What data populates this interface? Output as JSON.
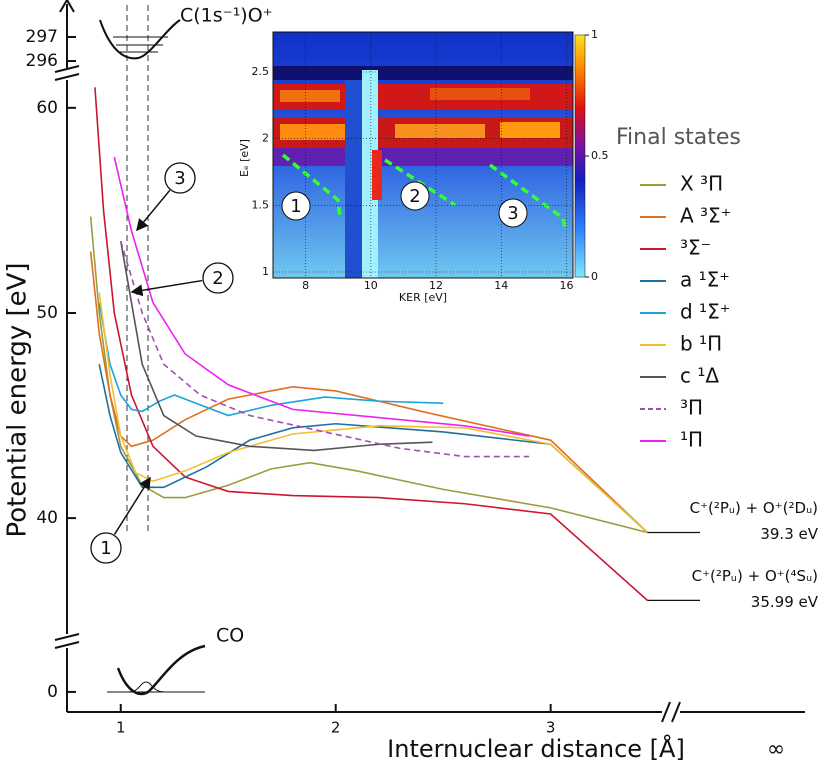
{
  "chart_data": [
    {
      "type": "line",
      "xlabel": "Internuclear distance [Å]",
      "ylabel": "Potential energy [eV]",
      "xlim": [
        0.75,
        4.16
      ],
      "xticks": [
        1,
        2,
        3
      ],
      "x_infinity_label": "∞",
      "ylim": [
        34,
        61.6
      ],
      "yticks": [
        40,
        50,
        60
      ],
      "upper_ylim": [
        295.42,
        297.79
      ],
      "upper_yticks": [
        296,
        297
      ],
      "lower_ylim": [
        -0.98,
        1.46
      ],
      "lower_yticks": [
        0
      ],
      "upper_state_label": "C(1s⁻¹)O⁺",
      "ground_state_label": "CO",
      "legend_title": "Final states",
      "legend": "right",
      "markers": [
        "1",
        "2",
        "3"
      ],
      "asymptotes": [
        {
          "label": "C⁺(²Pᵤ) + O⁺(²Dᵤ)",
          "value": 39.3,
          "value_label": "39.3 eV"
        },
        {
          "label": "C⁺(²Pᵤ) + O⁺(⁴Sᵤ)",
          "value": 35.99,
          "value_label": "35.99 eV"
        }
      ],
      "series": [
        {
          "name": "X ³Π",
          "color": "#9c9c3c",
          "x": [
            0.86,
            0.9,
            0.95,
            1.0,
            1.1,
            1.2,
            1.3,
            1.5,
            1.7,
            1.88,
            2.1,
            2.5,
            3.0,
            3.45
          ],
          "values": [
            54.7,
            50,
            46,
            43.5,
            41.6,
            41.0,
            41.0,
            41.6,
            42.4,
            42.7,
            42.3,
            41.4,
            40.5,
            39.3
          ]
        },
        {
          "name": "A ³Σ⁺",
          "color": "#e07020",
          "x": [
            0.86,
            0.9,
            0.95,
            1.0,
            1.05,
            1.15,
            1.3,
            1.5,
            1.8,
            2.0,
            2.4,
            3.0,
            3.45
          ],
          "values": [
            53,
            49,
            46,
            44,
            43.5,
            43.8,
            44.8,
            45.8,
            46.4,
            46.2,
            45.2,
            43.8,
            39.3
          ]
        },
        {
          "name": "³Σ⁻",
          "color": "#cc1530",
          "x": [
            0.88,
            0.92,
            0.97,
            1.05,
            1.15,
            1.3,
            1.5,
            1.8,
            2.2,
            2.6,
            3.0,
            3.45
          ],
          "values": [
            61,
            55,
            50,
            46,
            43.5,
            42,
            41.3,
            41.1,
            41.0,
            40.7,
            40.2,
            35.99
          ]
        },
        {
          "name": "a ¹Σ⁺",
          "color": "#1f6fa0",
          "x": [
            0.9,
            0.95,
            1.0,
            1.1,
            1.2,
            1.4,
            1.6,
            1.8,
            2.0,
            2.5,
            3.0,
            3.45
          ],
          "values": [
            47.5,
            45,
            43.2,
            41.5,
            41.5,
            42.5,
            43.8,
            44.4,
            44.6,
            44.2,
            43.6,
            39.3
          ]
        },
        {
          "name": "d ¹Σ⁺",
          "color": "#1aa4d8",
          "x": [
            0.9,
            0.95,
            1.0,
            1.05,
            1.1,
            1.18,
            1.25,
            1.35,
            1.5,
            1.7,
            1.95,
            2.2,
            2.5
          ],
          "values": [
            50.5,
            47.5,
            46,
            45.3,
            45.2,
            45.7,
            46,
            45.6,
            45,
            45.5,
            45.9,
            45.7,
            45.6
          ]
        },
        {
          "name": "b ¹Π",
          "color": "#f0c030",
          "x": [
            0.9,
            0.95,
            1.0,
            1.07,
            1.15,
            1.3,
            1.5,
            1.8,
            2.2,
            2.6,
            3.0,
            3.45
          ],
          "values": [
            51,
            47,
            44,
            42.2,
            41.8,
            42.3,
            43.2,
            44.1,
            44.5,
            44.4,
            43.6,
            39.3
          ]
        },
        {
          "name": "c ¹Δ",
          "color": "#555555",
          "x": [
            1.0,
            1.05,
            1.1,
            1.2,
            1.35,
            1.6,
            1.9,
            2.2,
            2.45
          ],
          "values": [
            53.5,
            50.5,
            47.5,
            45,
            44,
            43.5,
            43.3,
            43.6,
            43.7
          ]
        },
        {
          "name": "³Π",
          "color": "#a050b0",
          "dashed": true,
          "x": [
            1.0,
            1.1,
            1.2,
            1.37,
            1.6,
            1.95,
            2.3,
            2.6,
            2.9
          ],
          "values": [
            53.5,
            50,
            47.5,
            46,
            45,
            44.2,
            43.4,
            43,
            43
          ]
        },
        {
          "name": "¹Π",
          "color": "#ee22ee",
          "x": [
            0.97,
            1.05,
            1.15,
            1.3,
            1.5,
            1.8,
            2.2,
            2.6,
            2.9
          ],
          "values": [
            57.6,
            54,
            50.5,
            48,
            46.5,
            45.3,
            44.9,
            44.5,
            44
          ]
        }
      ]
    },
    {
      "type": "heatmap",
      "xlabel": "KER [eV]",
      "ylabel": "Eₑ [eV]",
      "xlim": [
        7,
        16.2
      ],
      "xticks": [
        8,
        10,
        12,
        14,
        16
      ],
      "ylim": [
        1,
        2.8
      ],
      "yticks": [
        1,
        1.5,
        2,
        2.5
      ],
      "colorbar_ticks": [
        0,
        0.5,
        1
      ],
      "markers": [
        "1",
        "2",
        "3"
      ]
    }
  ]
}
